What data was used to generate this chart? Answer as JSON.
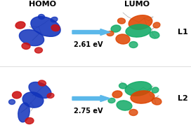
{
  "homo_label": "HOMO",
  "lumo_label": "LUMO",
  "l1_label": "L1",
  "l2_label": "L2",
  "l1_energy": "2.61 eV",
  "l2_energy": "2.75 eV",
  "arrow_color": "#5BB8EA",
  "bg_color": "#ffffff",
  "homo_blue": "#1133BB",
  "homo_red": "#CC1111",
  "lumo_orange": "#DD4400",
  "lumo_green": "#11AA66",
  "label_fontsize": 8,
  "energy_fontsize": 7,
  "side_label_fontsize": 8
}
